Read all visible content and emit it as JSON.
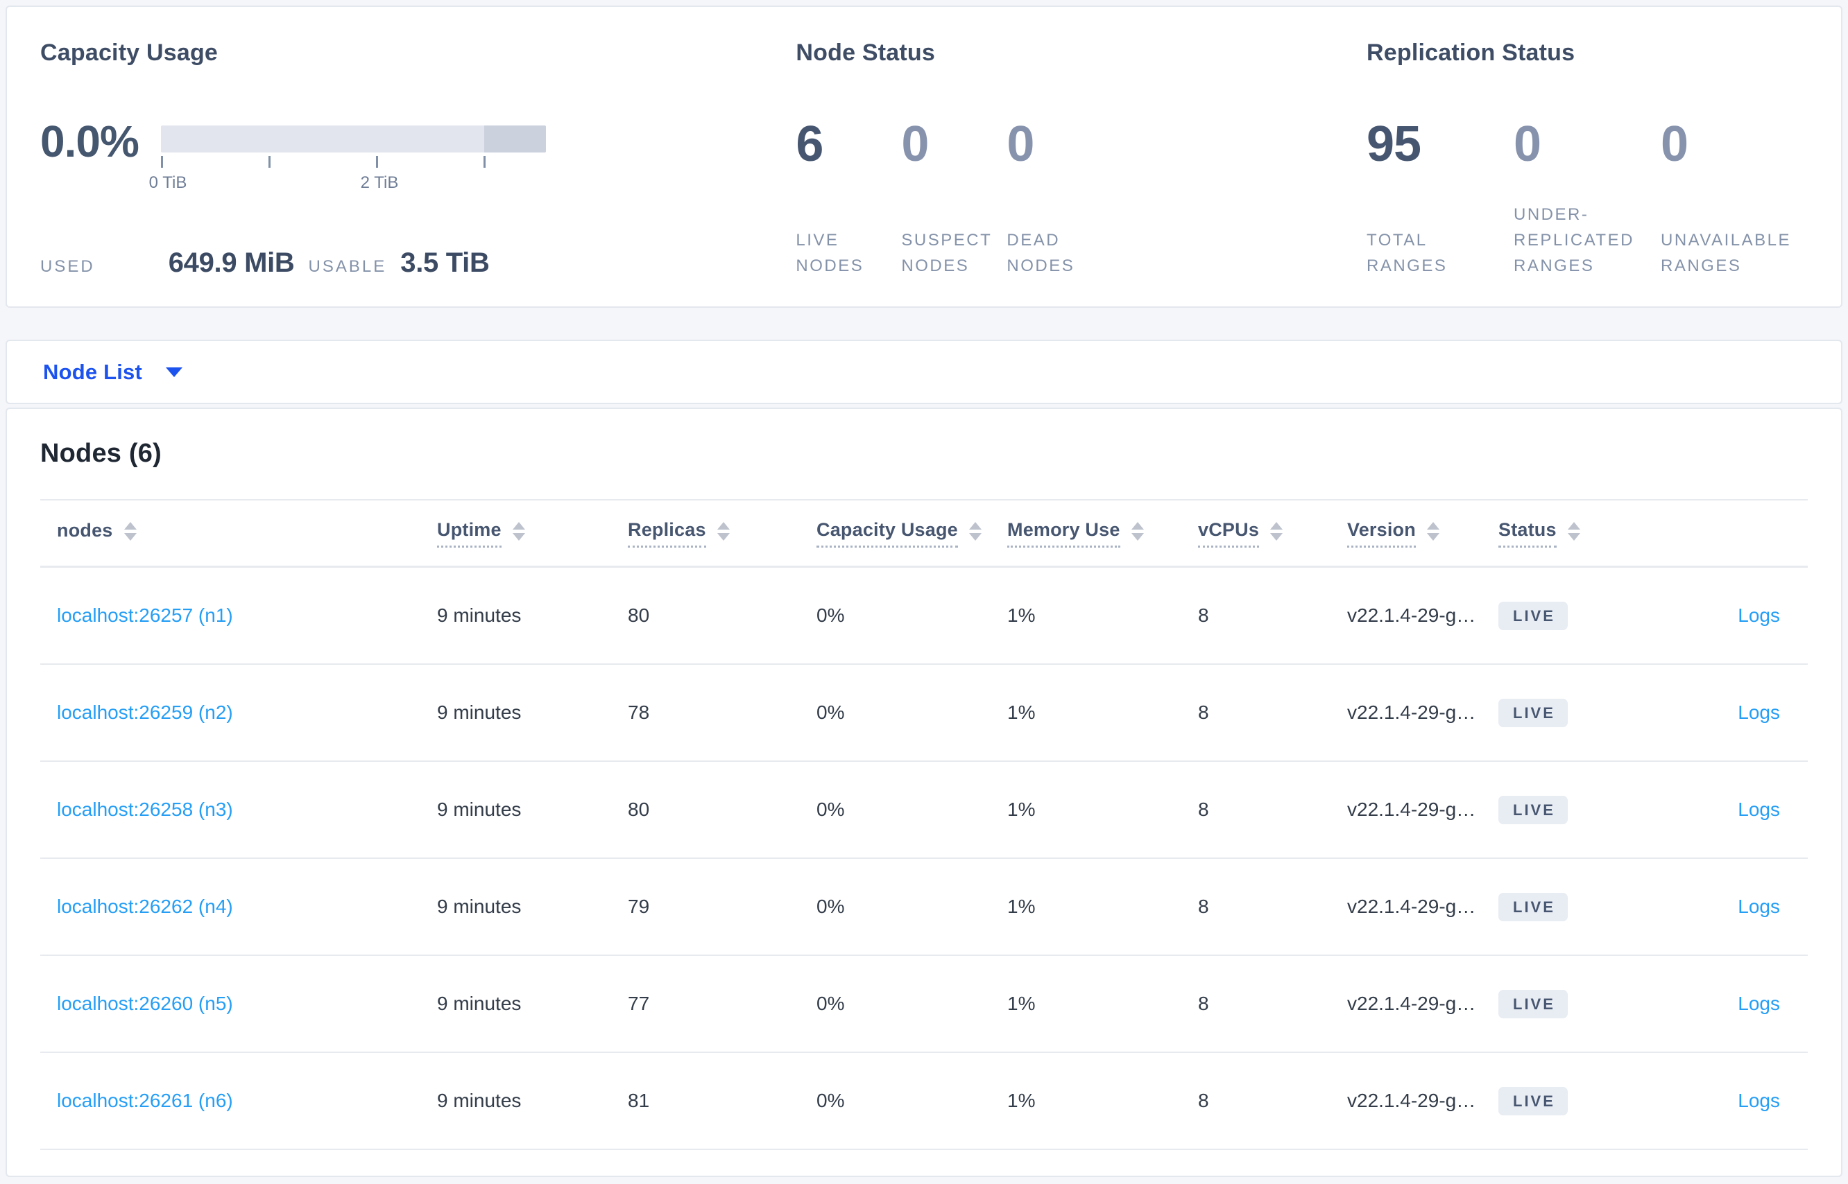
{
  "capacity": {
    "title": "Capacity Usage",
    "percent": "0.0%",
    "axis_tick_labels": [
      "0 TiB",
      "2 TiB"
    ],
    "used_label": "USED",
    "used_value": "649.9 MiB",
    "usable_label": "USABLE",
    "usable_value": "3.5 TiB"
  },
  "node_status": {
    "title": "Node Status",
    "stats": [
      {
        "value": "6",
        "label": "LIVE NODES",
        "emphasis": true
      },
      {
        "value": "0",
        "label": "SUSPECT NODES",
        "emphasis": false
      },
      {
        "value": "0",
        "label": "DEAD NODES",
        "emphasis": false
      }
    ]
  },
  "replication_status": {
    "title": "Replication Status",
    "stats": [
      {
        "value": "95",
        "label": "TOTAL RANGES",
        "emphasis": true
      },
      {
        "value": "0",
        "label": "UNDER-REPLICATED RANGES",
        "emphasis": false
      },
      {
        "value": "0",
        "label": "UNAVAILABLE RANGES",
        "emphasis": false
      }
    ]
  },
  "view_selector": {
    "label": "Node List"
  },
  "nodes_table": {
    "heading": "Nodes (6)",
    "columns": [
      {
        "key": "node",
        "label": "nodes",
        "sortable": true,
        "dotted": false
      },
      {
        "key": "uptime",
        "label": "Uptime",
        "sortable": true,
        "dotted": true
      },
      {
        "key": "replicas",
        "label": "Replicas",
        "sortable": true,
        "dotted": true
      },
      {
        "key": "capacity",
        "label": "Capacity Usage",
        "sortable": true,
        "dotted": true
      },
      {
        "key": "memory",
        "label": "Memory Use",
        "sortable": true,
        "dotted": true
      },
      {
        "key": "vcpus",
        "label": "vCPUs",
        "sortable": true,
        "dotted": true
      },
      {
        "key": "version",
        "label": "Version",
        "sortable": true,
        "dotted": true
      },
      {
        "key": "status",
        "label": "Status",
        "sortable": true,
        "dotted": true
      },
      {
        "key": "logs",
        "label": "",
        "sortable": false,
        "dotted": false
      }
    ],
    "rows": [
      {
        "node": "localhost:26257 (n1)",
        "uptime": "9 minutes",
        "replicas": "80",
        "capacity": "0%",
        "memory": "1%",
        "vcpus": "8",
        "version": "v22.1.4-29-g…",
        "status": "LIVE",
        "logs": "Logs"
      },
      {
        "node": "localhost:26259 (n2)",
        "uptime": "9 minutes",
        "replicas": "78",
        "capacity": "0%",
        "memory": "1%",
        "vcpus": "8",
        "version": "v22.1.4-29-g…",
        "status": "LIVE",
        "logs": "Logs"
      },
      {
        "node": "localhost:26258 (n3)",
        "uptime": "9 minutes",
        "replicas": "80",
        "capacity": "0%",
        "memory": "1%",
        "vcpus": "8",
        "version": "v22.1.4-29-g…",
        "status": "LIVE",
        "logs": "Logs"
      },
      {
        "node": "localhost:26262 (n4)",
        "uptime": "9 minutes",
        "replicas": "79",
        "capacity": "0%",
        "memory": "1%",
        "vcpus": "8",
        "version": "v22.1.4-29-g…",
        "status": "LIVE",
        "logs": "Logs"
      },
      {
        "node": "localhost:26260 (n5)",
        "uptime": "9 minutes",
        "replicas": "77",
        "capacity": "0%",
        "memory": "1%",
        "vcpus": "8",
        "version": "v22.1.4-29-g…",
        "status": "LIVE",
        "logs": "Logs"
      },
      {
        "node": "localhost:26261 (n6)",
        "uptime": "9 minutes",
        "replicas": "81",
        "capacity": "0%",
        "memory": "1%",
        "vcpus": "8",
        "version": "v22.1.4-29-g…",
        "status": "LIVE",
        "logs": "Logs"
      }
    ]
  },
  "colors": {
    "link_blue": "#259ef5",
    "selector_blue": "#1c52ee",
    "dark_slate": "#475670",
    "muted_slate": "#8793ad",
    "badge_bg": "#e8ecf3",
    "bar_track": "#e2e5ee",
    "bar_dark_segment": "#ccd1de",
    "page_bg": "#f4f6fa"
  }
}
